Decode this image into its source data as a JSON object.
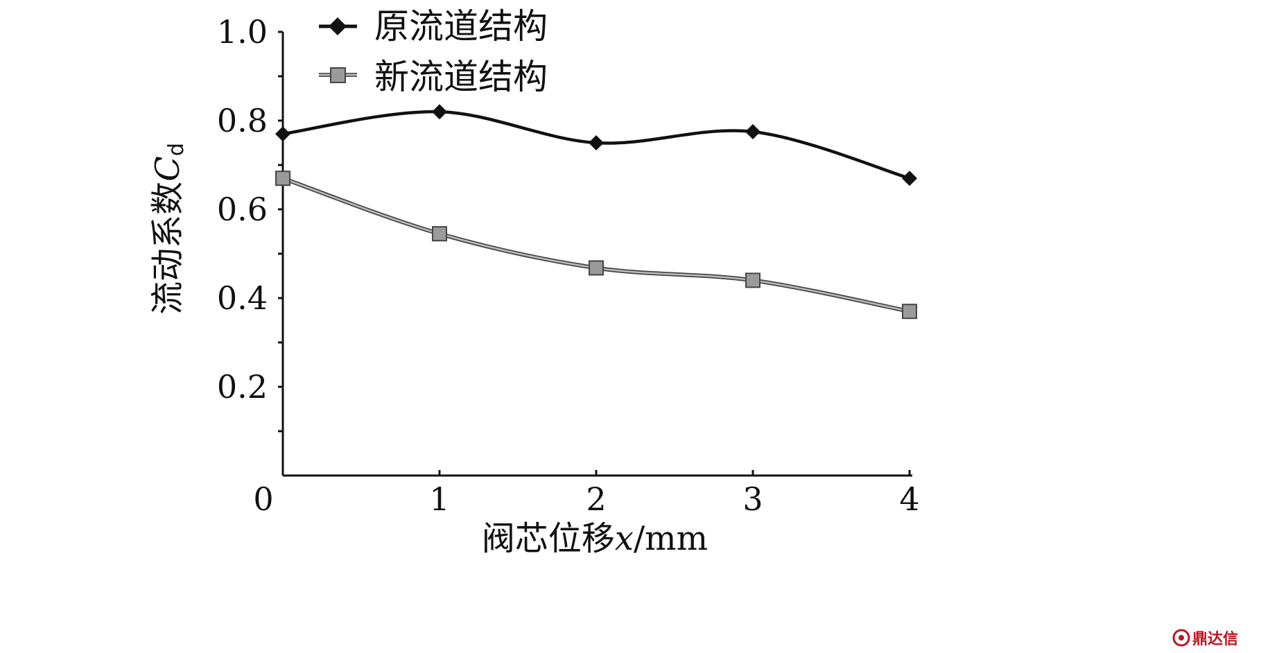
{
  "chart_data": {
    "type": "line",
    "x": [
      0,
      1,
      2,
      3,
      4
    ],
    "series": [
      {
        "name": "原流道结构",
        "values": [
          0.77,
          0.82,
          0.75,
          0.775,
          0.67
        ],
        "marker": "diamond",
        "color": "#111111"
      },
      {
        "name": "新流道结构",
        "values": [
          0.67,
          0.545,
          0.468,
          0.44,
          0.37
        ],
        "marker": "square",
        "color": "#8a8a8a"
      }
    ],
    "xlim": [
      0,
      4
    ],
    "ylim": [
      0,
      1.0
    ],
    "x_ticks": [
      "0",
      "1",
      "2",
      "3",
      "4"
    ],
    "y_ticks": [
      "0.2",
      "0.4",
      "0.6",
      "0.8",
      "1.0"
    ],
    "y_tick_values": [
      0.2,
      0.4,
      0.6,
      0.8,
      1.0
    ],
    "xlabel_prefix": "阀芯位移",
    "xlabel_var": "x",
    "xlabel_unit": "/mm",
    "ylabel_prefix": "流动系数",
    "ylabel_var": "C",
    "ylabel_sub": "d",
    "legend_position": "top-left",
    "grid": false
  },
  "watermark": {
    "text": "鼎达信"
  }
}
